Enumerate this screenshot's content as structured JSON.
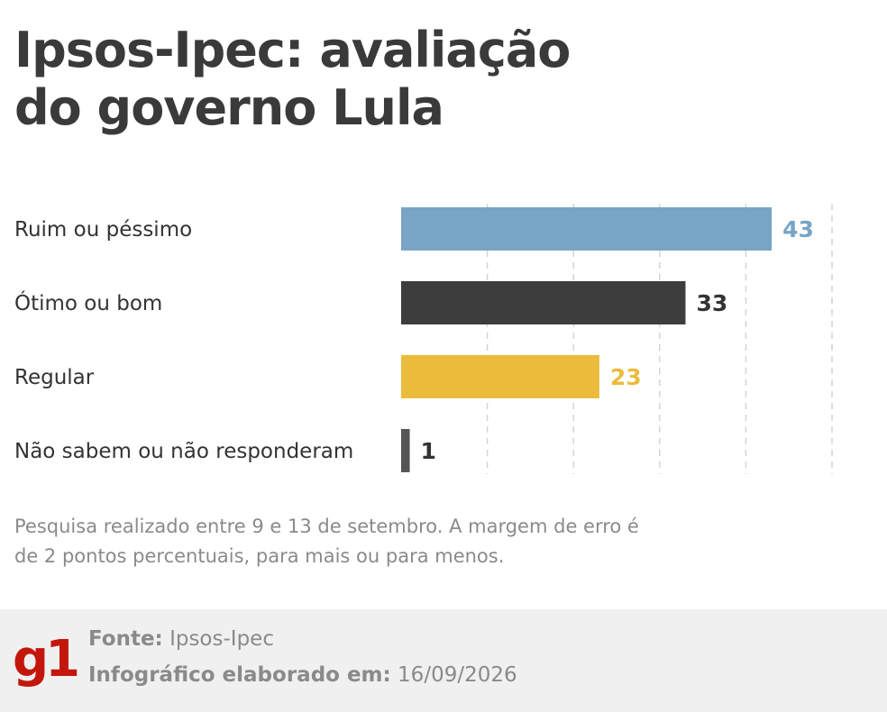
{
  "title_lines": [
    "Ipsos-Ipec: avaliação",
    "do governo Lula"
  ],
  "chart_data": {
    "type": "bar",
    "orientation": "horizontal",
    "categories": [
      "Ruim ou péssimo",
      "Ótimo ou bom",
      "Regular",
      "Não sabem ou não responderam"
    ],
    "values": [
      43,
      33,
      23,
      1
    ],
    "value_labels": [
      "43",
      "33",
      "23",
      "1"
    ],
    "colors": [
      "#78a4c6",
      "#3d3d3d",
      "#ebbc3c",
      "#555555"
    ],
    "label_colors": [
      "#78a4c6",
      "#333333",
      "#ebbc3c",
      "#333333"
    ],
    "xlim": [
      0,
      50
    ],
    "grid": true,
    "gridlines": [
      10,
      20,
      30,
      40,
      50
    ]
  },
  "note": "Pesquisa realizado entre 9 e 13 de setembro. A margem de erro é de 2 pontos percentuais, para mais ou para menos.",
  "footer": {
    "logo": "g1",
    "source_label": "Fonte:",
    "source_value": "Ipsos-Ipec",
    "made_label": "Infográfico elaborado em:",
    "made_value": "16/09/2026"
  }
}
